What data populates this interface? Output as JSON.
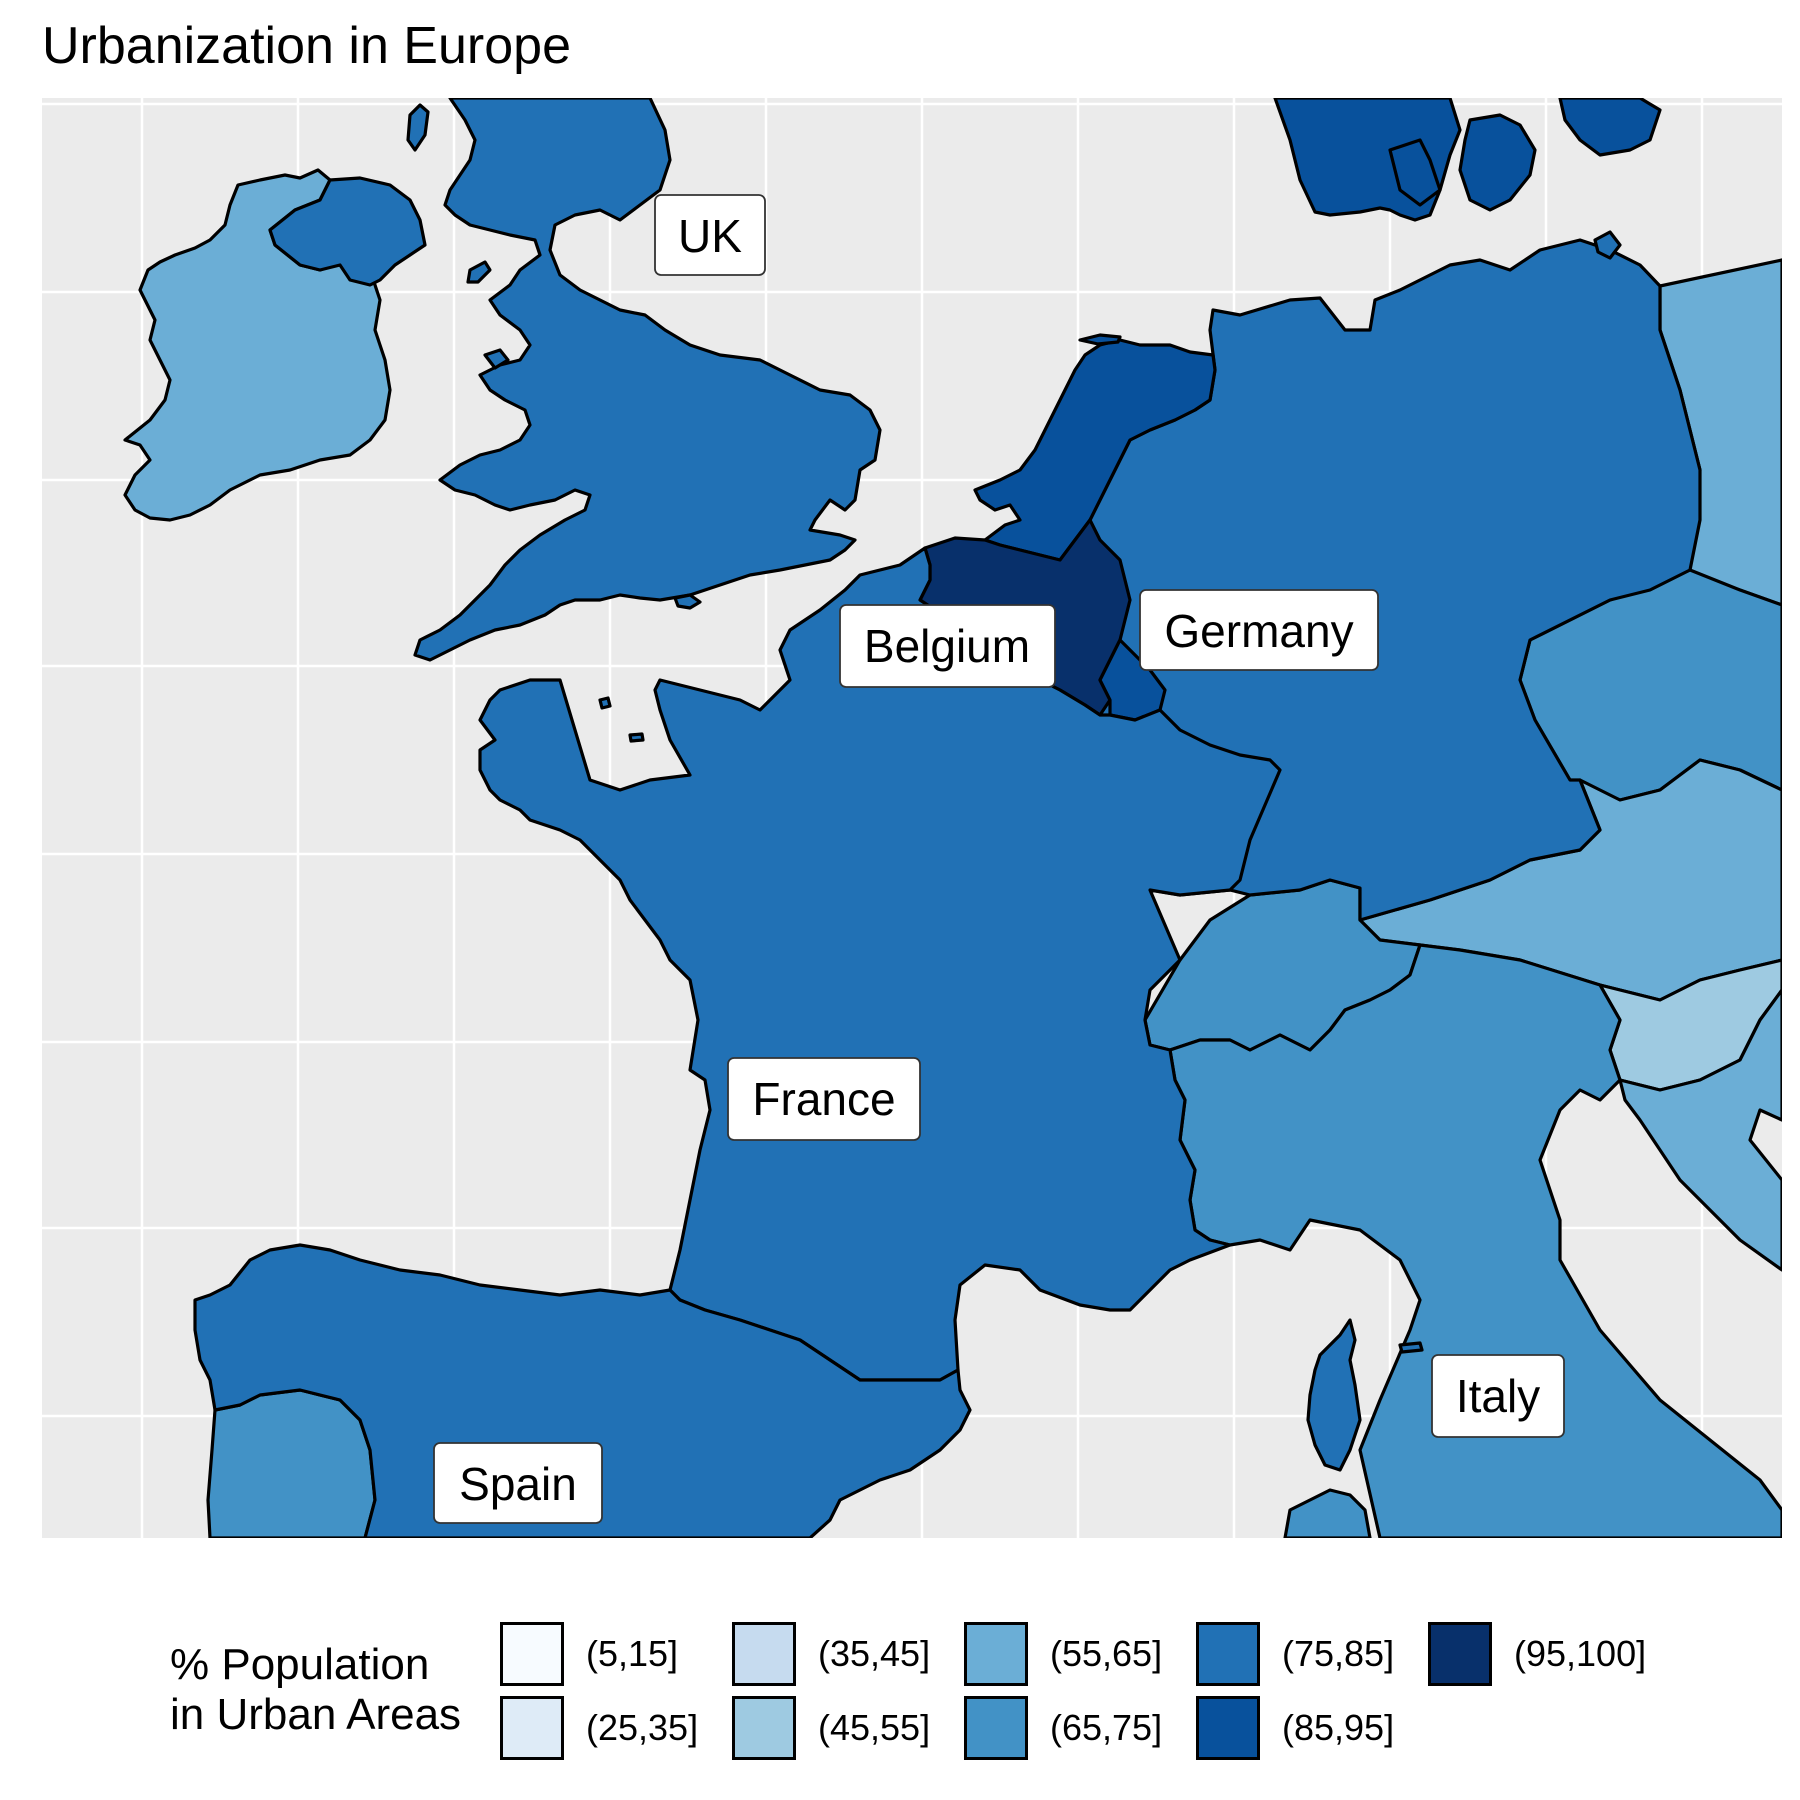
{
  "title": "Urbanization in Europe",
  "map": {
    "background": "#EBEBEB",
    "gridline_color": "#FFFFFF",
    "countries": [
      {
        "name": "Ireland",
        "bin": "(55,65]"
      },
      {
        "name": "Northern Ireland",
        "bin": "(75,85]"
      },
      {
        "name": "UK",
        "bin": "(75,85]"
      },
      {
        "name": "France",
        "bin": "(75,85]"
      },
      {
        "name": "Spain",
        "bin": "(75,85]"
      },
      {
        "name": "Portugal",
        "bin": "(65,75]"
      },
      {
        "name": "Belgium",
        "bin": "(95,100]"
      },
      {
        "name": "Netherlands",
        "bin": "(85,95]"
      },
      {
        "name": "Luxembourg",
        "bin": "(85,95]"
      },
      {
        "name": "Germany",
        "bin": "(75,85]"
      },
      {
        "name": "Denmark",
        "bin": "(85,95]"
      },
      {
        "name": "Poland",
        "bin": "(55,65]"
      },
      {
        "name": "Czechia",
        "bin": "(65,75]"
      },
      {
        "name": "Austria",
        "bin": "(55,65]"
      },
      {
        "name": "Switzerland",
        "bin": "(65,75]"
      },
      {
        "name": "Italy",
        "bin": "(65,75]"
      },
      {
        "name": "Slovenia",
        "bin": "(45,55]"
      },
      {
        "name": "Croatia",
        "bin": "(55,65]"
      },
      {
        "name": "Corsica",
        "bin": "(75,85]"
      },
      {
        "name": "Sardinia",
        "bin": "(65,75]"
      }
    ],
    "labels": [
      "UK",
      "Belgium",
      "Germany",
      "France",
      "Italy",
      "Spain"
    ]
  },
  "legend": {
    "title_line1": "% Population",
    "title_line2": "in Urban Areas",
    "items": [
      {
        "label": "(5,15]",
        "color": "#F7FBFF"
      },
      {
        "label": "(25,35]",
        "color": "#DEEBF7"
      },
      {
        "label": "(35,45]",
        "color": "#C6DBEF"
      },
      {
        "label": "(45,55]",
        "color": "#9ECAE1"
      },
      {
        "label": "(55,65]",
        "color": "#6BAED6"
      },
      {
        "label": "(65,75]",
        "color": "#4292C6"
      },
      {
        "label": "(75,85]",
        "color": "#2171B5"
      },
      {
        "label": "(85,95]",
        "color": "#08519C"
      },
      {
        "label": "(95,100]",
        "color": "#08306B"
      }
    ]
  }
}
